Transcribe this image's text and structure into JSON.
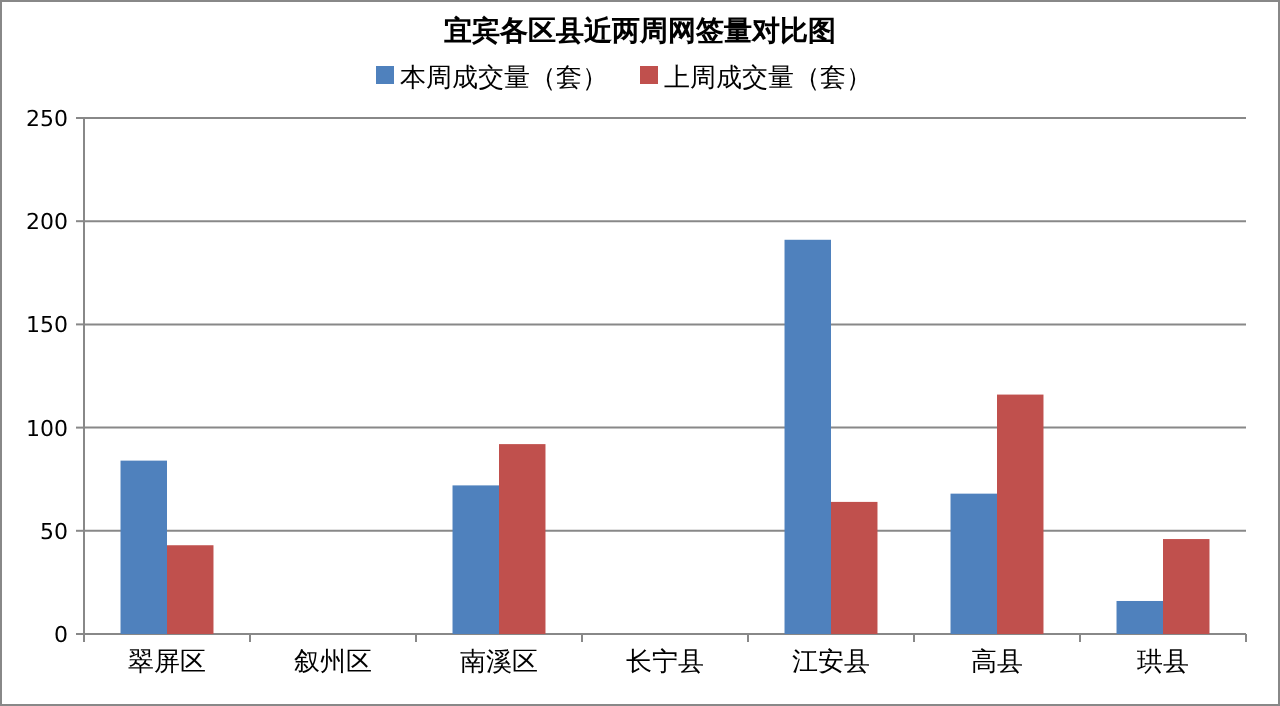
{
  "chart_data": {
    "type": "bar",
    "title": "宜宾各区县近两周网签量对比图",
    "categories": [
      "翠屏区",
      "叙州区",
      "南溪区",
      "长宁县",
      "江安县",
      "高县",
      "珙县"
    ],
    "series": [
      {
        "name": "本周成交量（套）",
        "color": "#4f81bd",
        "values": [
          84,
          null,
          72,
          null,
          191,
          68,
          16
        ]
      },
      {
        "name": "上周成交量（套）",
        "color": "#c0504d",
        "values": [
          43,
          null,
          92,
          null,
          64,
          116,
          46
        ]
      }
    ],
    "ylim": [
      0,
      250
    ],
    "yticks": [
      0,
      50,
      100,
      150,
      200,
      250
    ],
    "grid": "y",
    "legend": "top"
  }
}
